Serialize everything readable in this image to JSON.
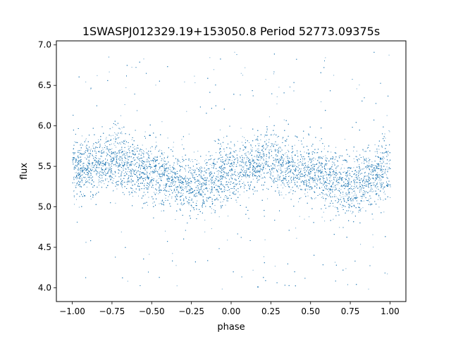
{
  "chart_data": {
    "type": "scatter",
    "title": "1SWASPJ012329.19+153050.8 Period 52773.09375s",
    "xlabel": "phase",
    "ylabel": "flux",
    "xlim": [
      -1.1,
      1.1
    ],
    "ylim": [
      3.83,
      7.05
    ],
    "xticks": [
      -1.0,
      -0.75,
      -0.5,
      -0.25,
      0.0,
      0.25,
      0.5,
      0.75,
      1.0
    ],
    "xtick_labels": [
      "−1.00",
      "−0.75",
      "−0.50",
      "−0.25",
      "0.00",
      "0.25",
      "0.50",
      "0.75",
      "1.00"
    ],
    "yticks": [
      4.0,
      4.5,
      5.0,
      5.5,
      6.0,
      6.5,
      7.0
    ],
    "ytick_labels": [
      "4.0",
      "4.5",
      "5.0",
      "5.5",
      "6.0",
      "6.5",
      "7.0"
    ],
    "grid": false,
    "marker_color": "#1f77b4",
    "series": [
      {
        "description_points": "Folded light curve covering phase -1 to 1 (two cycles); mean flux oscillates sinusoidally with amplitude ~0.15",
        "trend": {
          "phase": [
            -1.0,
            -0.75,
            -0.5,
            -0.25,
            0.0,
            0.25,
            0.5,
            0.75,
            1.0
          ],
          "flux": [
            5.45,
            5.58,
            5.42,
            5.26,
            5.43,
            5.58,
            5.42,
            5.26,
            5.43
          ]
        },
        "typical_scatter": 0.18,
        "outlier_range": [
          3.98,
          6.92
        ],
        "point_count_approx": 30000
      }
    ]
  }
}
